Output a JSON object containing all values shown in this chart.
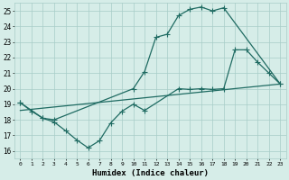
{
  "xlabel": "Humidex (Indice chaleur)",
  "bg_color": "#d6ede8",
  "grid_color": "#a8cdc7",
  "line_color": "#1f6b62",
  "xlim": [
    -0.5,
    23.5
  ],
  "ylim": [
    15.5,
    25.5
  ],
  "xticks": [
    0,
    1,
    2,
    3,
    4,
    5,
    6,
    7,
    8,
    9,
    10,
    11,
    12,
    13,
    14,
    15,
    16,
    17,
    18,
    19,
    20,
    21,
    22,
    23
  ],
  "yticks": [
    16,
    17,
    18,
    19,
    20,
    21,
    22,
    23,
    24,
    25
  ],
  "line1_x": [
    0,
    1,
    2,
    3,
    10,
    11,
    12,
    13,
    14,
    15,
    16,
    17,
    18,
    23
  ],
  "line1_y": [
    19.1,
    18.55,
    18.1,
    18.0,
    20.0,
    21.1,
    23.3,
    23.5,
    24.7,
    25.1,
    25.25,
    25.0,
    25.2,
    20.3
  ],
  "line2_x": [
    0,
    2,
    3,
    4,
    5,
    6,
    7,
    8,
    9,
    10,
    11,
    14,
    15,
    16,
    17,
    18,
    19,
    20,
    21,
    22,
    23
  ],
  "line2_y": [
    19.1,
    18.1,
    17.85,
    17.3,
    16.7,
    16.2,
    16.65,
    17.8,
    18.55,
    19.0,
    18.6,
    20.0,
    19.95,
    20.0,
    19.95,
    20.0,
    22.5,
    22.5,
    21.7,
    21.0,
    20.3
  ],
  "line3_x": [
    0,
    23
  ],
  "line3_y": [
    18.6,
    20.3
  ]
}
